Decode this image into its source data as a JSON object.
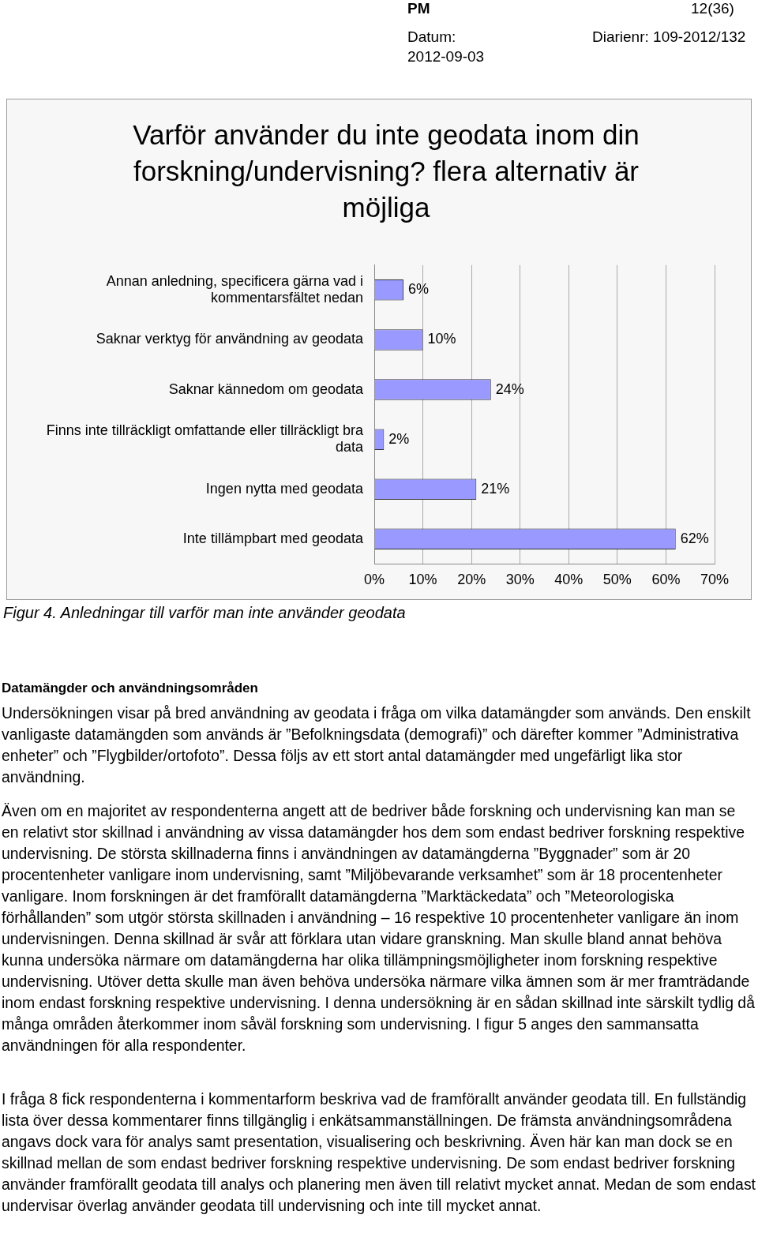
{
  "chart_data": {
    "type": "bar",
    "orientation": "horizontal",
    "title": "Varför använder du inte geodata inom din forskning/undervisning? flera alternativ är möjliga",
    "categories": [
      "Annan anledning, specificera gärna vad i kommentarsfältet nedan",
      "Saknar verktyg för användning av geodata",
      "Saknar kännedom om geodata",
      "Finns inte tillräckligt omfattande eller tillräckligt bra data",
      "Ingen nytta med geodata",
      "Inte tillämpbart med geodata"
    ],
    "values": [
      6,
      10,
      24,
      2,
      21,
      62
    ],
    "value_labels": [
      "6%",
      "10%",
      "24%",
      "2%",
      "21%",
      "62%"
    ],
    "color": "#9999ff",
    "xlim": [
      0,
      70
    ],
    "xticks": [
      {
        "value": 0,
        "label": "0%"
      },
      {
        "value": 10,
        "label": "10%"
      },
      {
        "value": 20,
        "label": "20%"
      },
      {
        "value": 30,
        "label": "30%"
      },
      {
        "value": 40,
        "label": "40%"
      },
      {
        "value": 50,
        "label": "50%"
      },
      {
        "value": 60,
        "label": "60%"
      },
      {
        "value": 70,
        "label": "70%"
      }
    ],
    "grid": "x",
    "annotations": [
      "PM",
      "12(36)",
      "Datum:",
      "2012-09-03",
      "Diarienr: 109-2012/132",
      "Figur 4. Anledningar till varför man inte använder geodata",
      "Datamängder och användningsområden",
      "Undersökningen visar på bred användning av geodata i fråga om vilka datamängder som används. Den enskilt vanligaste datamängden som används är ”Befolkningsdata (demografi)” och därefter kommer ”Administrativa enheter” och ”Flygbilder/ortofoto”. Dessa följs av ett stort antal datamängder med ungefärligt lika stor användning.",
      "Även om en majoritet av respondenterna angett att de bedriver både forskning och undervisning kan man se en relativt stor skillnad i användning av vissa datamängder hos dem som endast bedriver forskning respektive undervisning. De största skillnaderna finns i användningen av datamängderna ”Byggnader” som är 20 procentenheter vanligare inom undervisning, samt ”Miljöbevarande verksamhet” som är 18 procentenheter vanligare. Inom forskningen är det framförallt datamängderna ”Marktäckedata” och ”Meteorologiska förhållanden” som utgör största skillnaden i användning – 16 respektive 10 procentenheter vanligare än inom undervisningen. Denna skillnad är svår att förklara utan vidare granskning. Man skulle bland annat behöva kunna undersöka närmare om datamängderna har olika tillämpningsmöjligheter inom forskning respektive undervisning. Utöver detta skulle man även behöva undersöka närmare vilka ämnen som är mer framträdande inom endast forskning respektive undervisning. I denna undersökning är en sådan skillnad inte särskilt tydlig då många områden återkommer inom såväl forskning som undervisning. I figur 5 anges den sammansatta användningen för alla respondenter.",
      "I fråga 8 fick respondenterna i kommentarform beskriva vad de framförallt använder geodata till. En fullständig lista över dessa kommentarer finns tillgänglig i enkätsammanställningen. De främsta användningsområdena angavs dock vara för analys samt presentation, visualisering och beskrivning. Även här kan man dock se en skillnad mellan de som endast bedriver forskning respektive undervisning. De som endast bedriver forskning använder framförallt geodata till analys och planering men även till relativt mycket annat. Medan de som endast undervisar överlag använder geodata till undervisning och inte till mycket annat."
    ]
  }
}
